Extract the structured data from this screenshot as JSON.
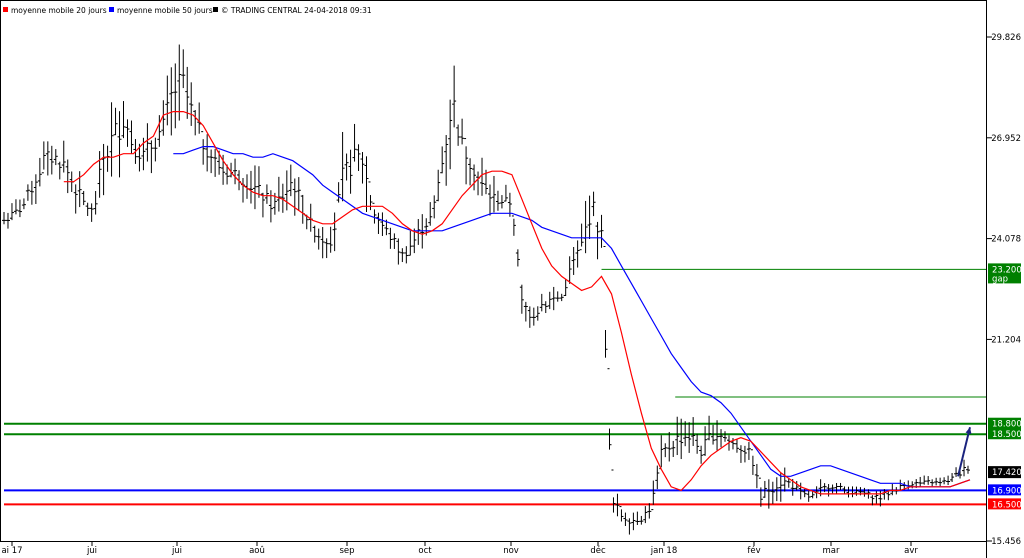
{
  "legend": {
    "ma20_label": "moyenne mobile 20 jours",
    "ma50_label": "moyenne mobile 50 jours",
    "source_label": "© TRADING CENTRAL 24-04-2018 09:31",
    "ma20_color": "#ff0000",
    "ma50_color": "#0000ff",
    "source_color": "#000000"
  },
  "chart_data": {
    "type": "ohlc",
    "ylim": [
      15.456,
      30.2
    ],
    "yticks": [
      {
        "value": 29.826,
        "label": "29.826"
      },
      {
        "value": 26.952,
        "label": "26.952"
      },
      {
        "value": 24.078,
        "label": "24.078"
      },
      {
        "value": 21.204,
        "label": "21.204"
      },
      {
        "value": 15.456,
        "label": "15.456"
      }
    ],
    "xlabels": [
      "ai 17",
      "jui",
      "jui",
      "aoû",
      "sep",
      "oct",
      "nov",
      "déc",
      "jan 18",
      "fév",
      "mar",
      "avr"
    ],
    "ohlc_anchors": [
      [
        0,
        24.2,
        25.0
      ],
      [
        5,
        24.3,
        25.2
      ],
      [
        10,
        24.5,
        25.6
      ],
      [
        15,
        25.0,
        26.3
      ],
      [
        20,
        25.4,
        27.2
      ],
      [
        25,
        25.7,
        27.1
      ],
      [
        30,
        25.5,
        26.9
      ],
      [
        35,
        24.8,
        26.4
      ],
      [
        40,
        24.6,
        25.6
      ],
      [
        45,
        24.4,
        25.2
      ],
      [
        50,
        25.0,
        27.8
      ],
      [
        55,
        25.5,
        28.4
      ],
      [
        60,
        26.2,
        28.9
      ],
      [
        65,
        25.9,
        27.5
      ],
      [
        70,
        25.7,
        27.2
      ],
      [
        75,
        25.9,
        27.7
      ],
      [
        80,
        26.3,
        28.2
      ],
      [
        85,
        26.8,
        29.8
      ],
      [
        90,
        27.0,
        29.9
      ],
      [
        95,
        26.4,
        28.6
      ],
      [
        100,
        26.0,
        27.6
      ],
      [
        105,
        25.7,
        27.0
      ],
      [
        110,
        25.4,
        26.6
      ],
      [
        115,
        25.3,
        26.6
      ],
      [
        120,
        25.1,
        26.5
      ],
      [
        125,
        24.8,
        26.3
      ],
      [
        130,
        24.6,
        26.0
      ],
      [
        135,
        24.4,
        25.6
      ],
      [
        140,
        24.6,
        26.0
      ],
      [
        145,
        24.9,
        26.6
      ],
      [
        150,
        24.3,
        25.6
      ],
      [
        155,
        23.8,
        24.9
      ],
      [
        160,
        23.4,
        24.8
      ],
      [
        165,
        23.3,
        25.0
      ],
      [
        170,
        24.4,
        27.0
      ],
      [
        175,
        25.2,
        27.4
      ],
      [
        180,
        24.9,
        27.8
      ],
      [
        185,
        24.3,
        25.5
      ],
      [
        190,
        24.0,
        24.9
      ],
      [
        195,
        23.5,
        24.6
      ],
      [
        200,
        23.1,
        24.1
      ],
      [
        205,
        23.3,
        24.6
      ],
      [
        210,
        23.8,
        25.0
      ],
      [
        215,
        24.2,
        25.2
      ],
      [
        220,
        25.2,
        27.3
      ],
      [
        225,
        26.3,
        29.8
      ],
      [
        230,
        25.9,
        27.6
      ],
      [
        235,
        25.4,
        27.0
      ],
      [
        240,
        24.7,
        26.4
      ],
      [
        245,
        24.6,
        25.9
      ],
      [
        250,
        24.7,
        25.6
      ],
      [
        255,
        24.7,
        25.5
      ],
      [
        260,
        21.7,
        22.8
      ],
      [
        265,
        21.3,
        22.5
      ],
      [
        270,
        21.5,
        22.9
      ],
      [
        275,
        21.9,
        22.8
      ],
      [
        280,
        22.2,
        22.6
      ],
      [
        285,
        22.7,
        23.9
      ],
      [
        290,
        23.3,
        24.5
      ],
      [
        295,
        23.8,
        26.2
      ],
      [
        300,
        23.3,
        25.0
      ],
      [
        305,
        15.9,
        17.2
      ],
      [
        310,
        15.7,
        16.7
      ],
      [
        315,
        15.7,
        16.4
      ],
      [
        320,
        15.8,
        16.4
      ],
      [
        325,
        16.0,
        16.9
      ],
      [
        330,
        17.3,
        18.5
      ],
      [
        335,
        17.6,
        18.8
      ],
      [
        340,
        17.6,
        19.3
      ],
      [
        345,
        17.8,
        19.1
      ],
      [
        350,
        17.5,
        18.5
      ],
      [
        355,
        17.9,
        19.1
      ],
      [
        360,
        18.0,
        19.0
      ],
      [
        365,
        17.8,
        18.7
      ],
      [
        370,
        17.7,
        18.5
      ],
      [
        375,
        17.6,
        18.3
      ],
      [
        380,
        16.1,
        17.3
      ],
      [
        385,
        16.4,
        17.6
      ],
      [
        390,
        16.6,
        17.7
      ],
      [
        395,
        16.7,
        17.5
      ],
      [
        400,
        16.5,
        17.1
      ],
      [
        405,
        16.5,
        16.9
      ],
      [
        410,
        16.6,
        17.2
      ],
      [
        415,
        16.8,
        17.3
      ],
      [
        420,
        16.7,
        17.2
      ],
      [
        425,
        16.6,
        17.1
      ],
      [
        430,
        16.7,
        17.0
      ],
      [
        435,
        16.5,
        17.0
      ],
      [
        440,
        16.4,
        17.0
      ],
      [
        445,
        16.6,
        17.1
      ],
      [
        450,
        16.8,
        17.2
      ],
      [
        455,
        16.9,
        17.3
      ],
      [
        460,
        16.9,
        17.3
      ],
      [
        465,
        17.0,
        17.3
      ],
      [
        470,
        16.9,
        17.3
      ],
      [
        475,
        17.0,
        17.4
      ],
      [
        480,
        17.0,
        17.8
      ],
      [
        485,
        17.3,
        17.9
      ]
    ],
    "ma20": [
      [
        30,
        25.7
      ],
      [
        35,
        25.7
      ],
      [
        40,
        25.9
      ],
      [
        45,
        26.2
      ],
      [
        50,
        26.4
      ],
      [
        55,
        26.4
      ],
      [
        60,
        26.5
      ],
      [
        65,
        26.5
      ],
      [
        70,
        26.8
      ],
      [
        75,
        27.0
      ],
      [
        80,
        27.6
      ],
      [
        85,
        27.7
      ],
      [
        90,
        27.7
      ],
      [
        95,
        27.6
      ],
      [
        100,
        27.3
      ],
      [
        105,
        26.8
      ],
      [
        110,
        26.3
      ],
      [
        115,
        25.9
      ],
      [
        120,
        25.6
      ],
      [
        125,
        25.4
      ],
      [
        130,
        25.3
      ],
      [
        135,
        25.3
      ],
      [
        140,
        25.2
      ],
      [
        145,
        25.0
      ],
      [
        150,
        24.8
      ],
      [
        155,
        24.6
      ],
      [
        160,
        24.5
      ],
      [
        165,
        24.5
      ],
      [
        170,
        24.7
      ],
      [
        175,
        24.9
      ],
      [
        180,
        25.0
      ],
      [
        185,
        25.0
      ],
      [
        190,
        25.0
      ],
      [
        195,
        24.8
      ],
      [
        200,
        24.5
      ],
      [
        205,
        24.3
      ],
      [
        210,
        24.2
      ],
      [
        215,
        24.3
      ],
      [
        220,
        24.5
      ],
      [
        225,
        24.9
      ],
      [
        230,
        25.3
      ],
      [
        235,
        25.6
      ],
      [
        240,
        25.9
      ],
      [
        245,
        26.0
      ],
      [
        250,
        26.0
      ],
      [
        255,
        25.9
      ],
      [
        260,
        25.2
      ],
      [
        265,
        24.5
      ],
      [
        270,
        23.8
      ],
      [
        275,
        23.3
      ],
      [
        280,
        23.0
      ],
      [
        285,
        22.8
      ],
      [
        290,
        22.6
      ],
      [
        295,
        22.7
      ],
      [
        300,
        23.0
      ],
      [
        305,
        22.5
      ],
      [
        310,
        21.4
      ],
      [
        315,
        20.2
      ],
      [
        320,
        19.1
      ],
      [
        325,
        18.1
      ],
      [
        330,
        17.5
      ],
      [
        335,
        17.0
      ],
      [
        340,
        16.9
      ],
      [
        345,
        17.2
      ],
      [
        350,
        17.6
      ],
      [
        355,
        17.9
      ],
      [
        360,
        18.1
      ],
      [
        365,
        18.3
      ],
      [
        370,
        18.4
      ],
      [
        375,
        18.3
      ],
      [
        380,
        18.0
      ],
      [
        385,
        17.7
      ],
      [
        390,
        17.4
      ],
      [
        395,
        17.2
      ],
      [
        400,
        17.0
      ],
      [
        405,
        16.9
      ],
      [
        410,
        16.8
      ],
      [
        415,
        16.8
      ],
      [
        420,
        16.8
      ],
      [
        425,
        16.8
      ],
      [
        430,
        16.8
      ],
      [
        435,
        16.8
      ],
      [
        440,
        16.8
      ],
      [
        445,
        16.9
      ],
      [
        450,
        16.9
      ],
      [
        455,
        17.0
      ],
      [
        460,
        17.0
      ],
      [
        465,
        17.0
      ],
      [
        470,
        17.0
      ],
      [
        475,
        17.0
      ],
      [
        480,
        17.1
      ],
      [
        485,
        17.2
      ]
    ],
    "ma50": [
      [
        85,
        26.5
      ],
      [
        90,
        26.5
      ],
      [
        95,
        26.6
      ],
      [
        100,
        26.7
      ],
      [
        105,
        26.7
      ],
      [
        110,
        26.6
      ],
      [
        115,
        26.5
      ],
      [
        120,
        26.5
      ],
      [
        125,
        26.4
      ],
      [
        130,
        26.4
      ],
      [
        135,
        26.5
      ],
      [
        140,
        26.4
      ],
      [
        145,
        26.3
      ],
      [
        150,
        26.1
      ],
      [
        155,
        25.9
      ],
      [
        160,
        25.6
      ],
      [
        165,
        25.4
      ],
      [
        170,
        25.2
      ],
      [
        175,
        25.0
      ],
      [
        180,
        24.8
      ],
      [
        185,
        24.7
      ],
      [
        190,
        24.6
      ],
      [
        195,
        24.5
      ],
      [
        200,
        24.4
      ],
      [
        205,
        24.3
      ],
      [
        210,
        24.3
      ],
      [
        215,
        24.3
      ],
      [
        220,
        24.3
      ],
      [
        225,
        24.4
      ],
      [
        230,
        24.5
      ],
      [
        235,
        24.6
      ],
      [
        240,
        24.7
      ],
      [
        245,
        24.8
      ],
      [
        250,
        24.8
      ],
      [
        255,
        24.8
      ],
      [
        260,
        24.7
      ],
      [
        265,
        24.6
      ],
      [
        270,
        24.4
      ],
      [
        275,
        24.3
      ],
      [
        280,
        24.2
      ],
      [
        285,
        24.1
      ],
      [
        290,
        24.1
      ],
      [
        295,
        24.1
      ],
      [
        300,
        24.1
      ],
      [
        305,
        23.8
      ],
      [
        310,
        23.3
      ],
      [
        315,
        22.8
      ],
      [
        320,
        22.3
      ],
      [
        325,
        21.8
      ],
      [
        330,
        21.3
      ],
      [
        335,
        20.8
      ],
      [
        340,
        20.4
      ],
      [
        345,
        20.0
      ],
      [
        350,
        19.7
      ],
      [
        355,
        19.6
      ],
      [
        360,
        19.4
      ],
      [
        365,
        19.1
      ],
      [
        370,
        18.7
      ],
      [
        375,
        18.3
      ],
      [
        380,
        17.9
      ],
      [
        385,
        17.5
      ],
      [
        390,
        17.3
      ],
      [
        395,
        17.3
      ],
      [
        400,
        17.4
      ],
      [
        405,
        17.5
      ],
      [
        410,
        17.6
      ],
      [
        415,
        17.6
      ],
      [
        420,
        17.5
      ],
      [
        425,
        17.4
      ],
      [
        430,
        17.3
      ],
      [
        435,
        17.2
      ],
      [
        440,
        17.1
      ],
      [
        445,
        17.1
      ],
      [
        450,
        17.1
      ],
      [
        455,
        17.0
      ],
      [
        460,
        17.0
      ],
      [
        465,
        17.0
      ],
      [
        470,
        17.0
      ],
      [
        475,
        17.0
      ],
      [
        480,
        17.1
      ],
      [
        485,
        17.2
      ]
    ],
    "horizontal_levels": [
      {
        "value": 23.2,
        "label": "23.200",
        "sublabel": "gap",
        "color": "#008000",
        "start_day": 300,
        "thin": true
      },
      {
        "value": 19.56,
        "label": "",
        "sublabel": "",
        "color": "#008000",
        "start_day": 337,
        "thin": true
      },
      {
        "value": 18.8,
        "label": "18.800",
        "sublabel": "",
        "color": "#008000",
        "start_day": 0,
        "thin": false
      },
      {
        "value": 18.5,
        "label": "18.500",
        "sublabel": "",
        "color": "#008000",
        "start_day": 0,
        "thin": false
      },
      {
        "value": 16.9,
        "label": "16.900",
        "sublabel": "",
        "color": "#0000ff",
        "start_day": 0,
        "thin": false
      },
      {
        "value": 16.5,
        "label": "16.500",
        "sublabel": "",
        "color": "#ff0000",
        "start_day": 0,
        "thin": false
      }
    ],
    "last_price": {
      "value": 17.42,
      "label": "17.420",
      "color": "#000000"
    },
    "forecast_arrow": {
      "from_day": 479,
      "from_value": 17.3,
      "to_day": 485,
      "to_value": 18.7,
      "color": "#1a237e"
    }
  }
}
